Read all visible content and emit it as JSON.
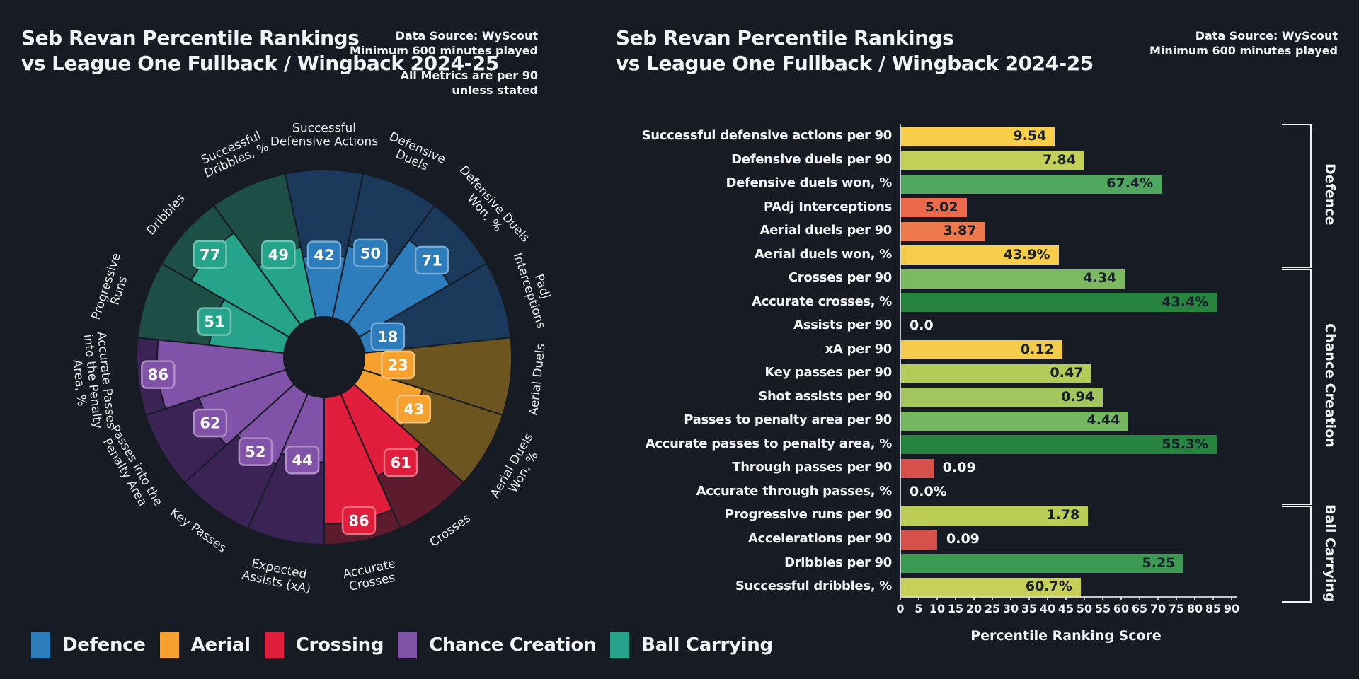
{
  "categories": {
    "defence": {
      "label": "Defence",
      "color": "#2d7dbd",
      "dark": "#1b3a5b"
    },
    "aerial": {
      "label": "Aerial",
      "color": "#f6a12e",
      "dark": "#6d5520"
    },
    "crossing": {
      "label": "Crossing",
      "color": "#e01e3c",
      "dark": "#5d1b2e"
    },
    "chance": {
      "label": "Chance Creation",
      "color": "#8153a8",
      "dark": "#3b2356"
    },
    "ball": {
      "label": "Ball Carrying",
      "color": "#25a48b",
      "dark": "#1d4f46"
    }
  },
  "left_panel": {
    "title_line1": "Seb Revan Percentile Rankings",
    "title_line2": "vs League One Fullback / Wingback 2024-25",
    "meta_lines": [
      "Data Source: WyScout",
      "Minimum 600 minutes played",
      "",
      "All Metrics are per 90",
      "unless stated"
    ],
    "legend_items": [
      "defence",
      "aerial",
      "crossing",
      "chance",
      "ball"
    ],
    "chart_data": {
      "type": "radial-bar",
      "title": "Seb Revan percentile pizza chart",
      "scale": [
        0,
        100
      ],
      "slices": [
        {
          "lines": [
            "Successful",
            "Defensive Actions"
          ],
          "percentile": 42,
          "category": "defence"
        },
        {
          "lines": [
            "Defensive",
            "Duels"
          ],
          "percentile": 50,
          "category": "defence"
        },
        {
          "lines": [
            "Defensive Duels",
            "Won, %"
          ],
          "percentile": 71,
          "category": "defence"
        },
        {
          "lines": [
            "Padj",
            "Interceptions"
          ],
          "percentile": 18,
          "category": "defence"
        },
        {
          "lines": [
            "Aerial Duels"
          ],
          "percentile": 23,
          "category": "aerial"
        },
        {
          "lines": [
            "Aerial Duels",
            "Won, %"
          ],
          "percentile": 43,
          "category": "aerial"
        },
        {
          "lines": [
            "Crosses"
          ],
          "percentile": 61,
          "category": "crossing"
        },
        {
          "lines": [
            "Accurate",
            "Crosses"
          ],
          "percentile": 86,
          "category": "crossing"
        },
        {
          "lines": [
            "Expected",
            "Assists (xA)"
          ],
          "percentile": 44,
          "category": "chance"
        },
        {
          "lines": [
            "Key Passes"
          ],
          "percentile": 52,
          "category": "chance"
        },
        {
          "lines": [
            "Passes into the",
            "Penalty Area"
          ],
          "percentile": 62,
          "category": "chance"
        },
        {
          "lines": [
            "Accurate Passes",
            "into the Penalty",
            "Area, %"
          ],
          "percentile": 86,
          "category": "chance"
        },
        {
          "lines": [
            "Progressive",
            "Runs"
          ],
          "percentile": 51,
          "category": "ball"
        },
        {
          "lines": [
            "Dribbles"
          ],
          "percentile": 77,
          "category": "ball"
        },
        {
          "lines": [
            "Successful",
            "Dribbles, %"
          ],
          "percentile": 49,
          "category": "ball"
        }
      ]
    }
  },
  "right_panel": {
    "title_line1": "Seb Revan Percentile Rankings",
    "title_line2": "vs League One Fullback / Wingback 2024-25",
    "meta_lines": [
      "Data Source: WyScout",
      "Minimum 600 minutes played"
    ],
    "chart_data": {
      "type": "bar",
      "orientation": "horizontal",
      "xlabel": "Percentile Ranking Score",
      "xlim": [
        0,
        90
      ],
      "ticks": [
        0,
        5,
        10,
        15,
        20,
        25,
        30,
        35,
        40,
        45,
        50,
        55,
        60,
        65,
        70,
        75,
        80,
        85,
        90
      ],
      "rows": [
        {
          "label": "Successful defensive actions per 90",
          "value": "9.54",
          "percentile": 42,
          "color": "#f7cf4b"
        },
        {
          "label": "Defensive duels per 90",
          "value": "7.84",
          "percentile": 50,
          "color": "#c4d158"
        },
        {
          "label": "Defensive duels won, %",
          "value": "67.4%",
          "percentile": 71,
          "color": "#4fa85d"
        },
        {
          "label": "PAdj Interceptions",
          "value": "5.02",
          "percentile": 18,
          "color": "#ec6a4b"
        },
        {
          "label": "Aerial duels per 90",
          "value": "3.87",
          "percentile": 23,
          "color": "#ee7a4c"
        },
        {
          "label": "Aerial duels won, %",
          "value": "43.9%",
          "percentile": 43,
          "color": "#f8cc4b"
        },
        {
          "label": "Crosses per 90",
          "value": "4.34",
          "percentile": 61,
          "color": "#7cba62"
        },
        {
          "label": "Accurate crosses, %",
          "value": "43.4%",
          "percentile": 86,
          "color": "#27843f"
        },
        {
          "label": "Assists per 90",
          "value": "0.0",
          "percentile": 0,
          "color": null
        },
        {
          "label": "xA per 90",
          "value": "0.12",
          "percentile": 44,
          "color": "#f3cc4d"
        },
        {
          "label": "Key passes per 90",
          "value": "0.47",
          "percentile": 52,
          "color": "#b3cb59"
        },
        {
          "label": "Shot assists per 90",
          "value": "0.94",
          "percentile": 55,
          "color": "#a2c55d"
        },
        {
          "label": "Passes to penalty area per 90",
          "value": "4.44",
          "percentile": 62,
          "color": "#76b761"
        },
        {
          "label": "Accurate passes to penalty area, %",
          "value": "55.3%",
          "percentile": 86,
          "color": "#27843f"
        },
        {
          "label": "Through passes per 90",
          "value": "0.09",
          "percentile": 9,
          "color": "#d7514c"
        },
        {
          "label": "Accurate through passes, %",
          "value": "0.0%",
          "percentile": 0,
          "color": null
        },
        {
          "label": "Progressive runs per 90",
          "value": "1.78",
          "percentile": 51,
          "color": "#bccd56"
        },
        {
          "label": "Accelerations per 90",
          "value": "0.09",
          "percentile": 10,
          "color": "#d7514c"
        },
        {
          "label": "Dribbles per 90",
          "value": "5.25",
          "percentile": 77,
          "color": "#3d9a52"
        },
        {
          "label": "Successful dribbles, %",
          "value": "60.7%",
          "percentile": 49,
          "color": "#c6d05a"
        }
      ],
      "groups": [
        {
          "label": "Defence",
          "start": 0,
          "end": 5
        },
        {
          "label": "Chance Creation",
          "start": 6,
          "end": 15
        },
        {
          "label": "Ball Carrying",
          "start": 16,
          "end": 19
        }
      ]
    }
  }
}
